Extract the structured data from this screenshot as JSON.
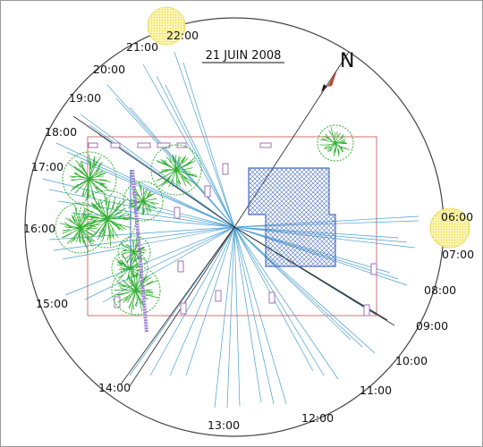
{
  "title": "21 JUIN 2008",
  "north_label": "N",
  "hours": [
    {
      "label": "06:00"
    },
    {
      "label": "07:00"
    },
    {
      "label": "08:00"
    },
    {
      "label": "09:00"
    },
    {
      "label": "10:00"
    },
    {
      "label": "11:00"
    },
    {
      "label": "12:00"
    },
    {
      "label": "13:00"
    },
    {
      "label": "14:00"
    },
    {
      "label": "15:00"
    },
    {
      "label": "16:00"
    },
    {
      "label": "17:00"
    },
    {
      "label": "18:00"
    },
    {
      "label": "19:00"
    },
    {
      "label": "20:00"
    },
    {
      "label": "21:00"
    },
    {
      "label": "22:00"
    }
  ],
  "colors": {
    "sun_ray": "#4a9fd0",
    "shadow_line": "#333333",
    "plot_outline": "#d07070",
    "building": "#4a6fc0",
    "tree": "#2fae2f",
    "hedge": "#9b7fd0",
    "marker": "#a070b0",
    "sun": "#f6e96a",
    "north_arrow": "#c0402a"
  }
}
